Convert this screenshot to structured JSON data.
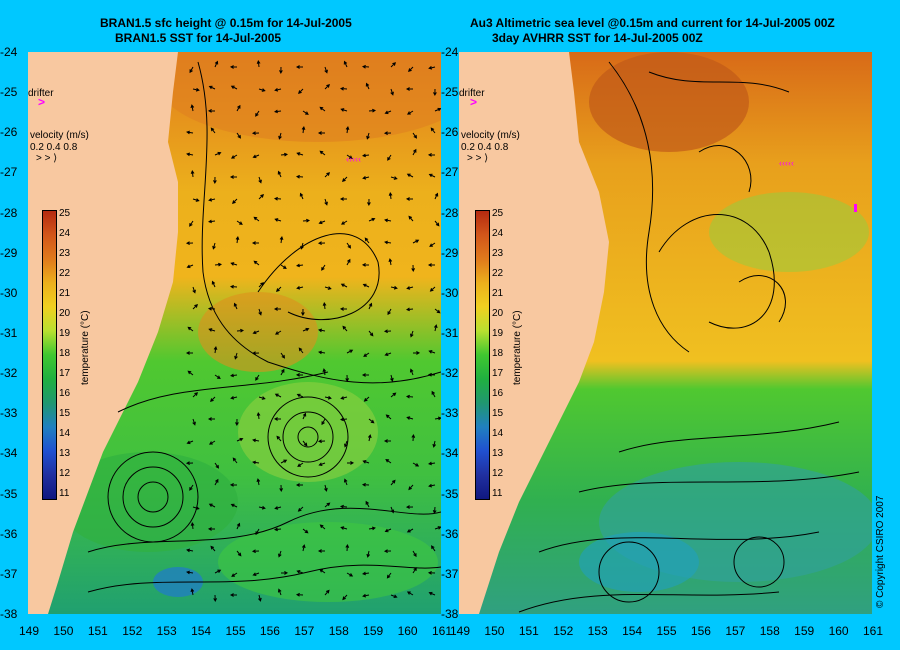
{
  "titles": {
    "left_line1": "BRAN1.5 sfc height @ 0.15m for 14-Jul-2005",
    "left_line2": "BRAN1.5 SST for 14-Jul-2005",
    "right_line1": "Au3 Altimetric sea level  @0.15m and current for 14-Jul-2005 00Z",
    "right_line2": "3day AVHRR SST for 14-Jul-2005 00Z"
  },
  "axes": {
    "lat_labels": [
      "-24",
      "-25",
      "-26",
      "-27",
      "-28",
      "-29",
      "-30",
      "-31",
      "-32",
      "-33",
      "-34",
      "-35",
      "-36",
      "-37",
      "-38"
    ],
    "lon_labels_left": [
      "149",
      "150",
      "151",
      "152",
      "153",
      "154",
      "155",
      "156",
      "157",
      "158",
      "159",
      "160",
      "161"
    ],
    "lon_labels_right": [
      "149",
      "150",
      "151",
      "152",
      "153",
      "154",
      "155",
      "156",
      "157",
      "158",
      "159",
      "160",
      "161"
    ],
    "lat_range": [
      -38,
      -24
    ],
    "lon_range": [
      149,
      161
    ]
  },
  "legend": {
    "drifter_label": "drifter",
    "velocity_label": "velocity (m/s)",
    "velocity_scale": "0.2 0.4 0.8",
    "colorbar_label": "temperature (°C)",
    "colorbar_ticks": [
      "25",
      "24",
      "23",
      "22",
      "21",
      "20",
      "19",
      "18",
      "17",
      "16",
      "15",
      "14",
      "13",
      "12",
      "11"
    ],
    "colorbar_stops": [
      "#b42a10",
      "#d2561a",
      "#e07a1c",
      "#ecb01c",
      "#f0d020",
      "#b8e030",
      "#40c830",
      "#20b040",
      "#209870",
      "#2080c0",
      "#2050d0",
      "#2030a0",
      "#101880"
    ]
  },
  "copyright": "© Copyright CSIRO 2007",
  "colors": {
    "background": "#00c8ff",
    "land": "#f8c8a0",
    "drifter": "#ff00ff"
  }
}
